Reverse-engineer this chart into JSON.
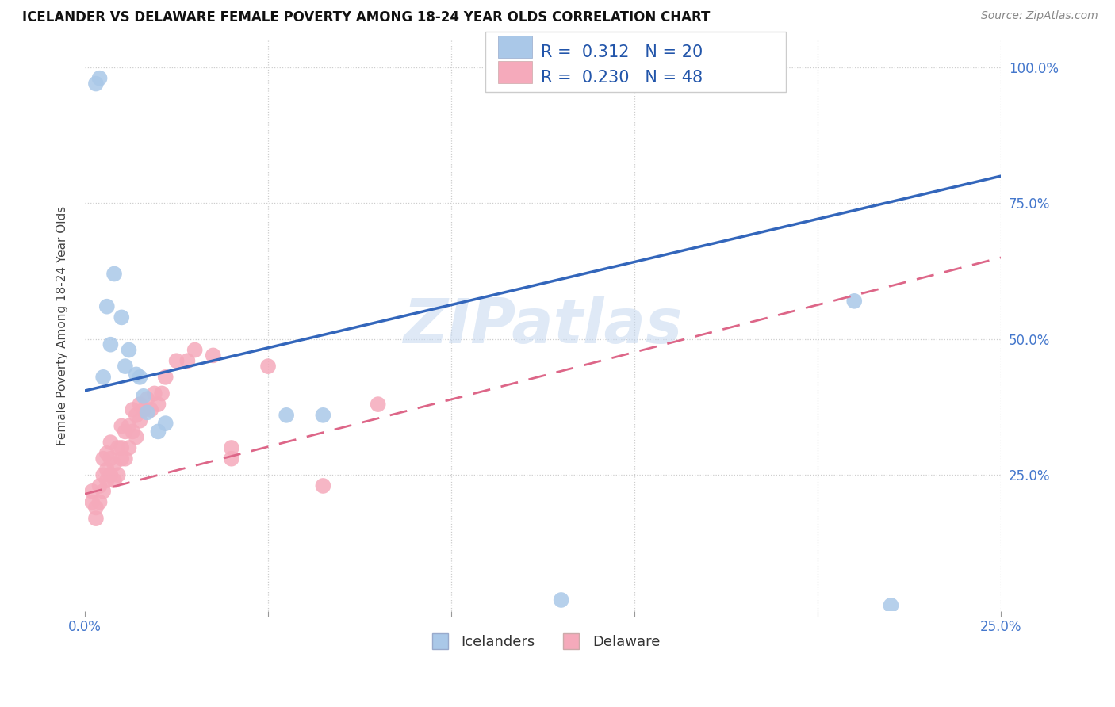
{
  "title": "ICELANDER VS DELAWARE FEMALE POVERTY AMONG 18-24 YEAR OLDS CORRELATION CHART",
  "source": "Source: ZipAtlas.com",
  "ylabel": "Female Poverty Among 18-24 Year Olds",
  "xlim": [
    0.0,
    0.25
  ],
  "ylim": [
    0.0,
    1.05
  ],
  "icelanders_color": "#aac8e8",
  "delaware_color": "#f5aabb",
  "icelanders_R": 0.312,
  "icelanders_N": 20,
  "delaware_R": 0.23,
  "delaware_N": 48,
  "icelanders_line_color": "#3366bb",
  "delaware_line_color": "#dd6688",
  "watermark": "ZIPatlas",
  "icelanders_x": [
    0.003,
    0.004,
    0.005,
    0.006,
    0.007,
    0.008,
    0.01,
    0.011,
    0.012,
    0.014,
    0.015,
    0.016,
    0.017,
    0.02,
    0.022,
    0.055,
    0.065,
    0.13,
    0.21,
    0.22
  ],
  "icelanders_y": [
    0.97,
    0.98,
    0.43,
    0.56,
    0.49,
    0.62,
    0.54,
    0.45,
    0.48,
    0.435,
    0.43,
    0.395,
    0.365,
    0.33,
    0.345,
    0.36,
    0.36,
    0.02,
    0.57,
    0.01
  ],
  "delaware_x": [
    0.002,
    0.002,
    0.003,
    0.003,
    0.004,
    0.004,
    0.005,
    0.005,
    0.005,
    0.006,
    0.006,
    0.006,
    0.007,
    0.007,
    0.007,
    0.008,
    0.008,
    0.009,
    0.009,
    0.01,
    0.01,
    0.01,
    0.011,
    0.011,
    0.012,
    0.012,
    0.013,
    0.013,
    0.014,
    0.014,
    0.015,
    0.015,
    0.016,
    0.017,
    0.018,
    0.019,
    0.02,
    0.021,
    0.022,
    0.025,
    0.028,
    0.03,
    0.035,
    0.04,
    0.04,
    0.05,
    0.065,
    0.08
  ],
  "delaware_y": [
    0.2,
    0.22,
    0.17,
    0.19,
    0.2,
    0.23,
    0.22,
    0.25,
    0.28,
    0.24,
    0.26,
    0.29,
    0.25,
    0.28,
    0.31,
    0.24,
    0.27,
    0.25,
    0.3,
    0.28,
    0.3,
    0.34,
    0.28,
    0.33,
    0.3,
    0.34,
    0.33,
    0.37,
    0.32,
    0.36,
    0.35,
    0.38,
    0.37,
    0.39,
    0.37,
    0.4,
    0.38,
    0.4,
    0.43,
    0.46,
    0.46,
    0.48,
    0.47,
    0.28,
    0.3,
    0.45,
    0.23,
    0.38
  ],
  "ice_line_x0": 0.0,
  "ice_line_y0": 0.405,
  "ice_line_x1": 0.25,
  "ice_line_y1": 0.8,
  "del_line_x0": 0.0,
  "del_line_y0": 0.215,
  "del_line_x1": 0.25,
  "del_line_y1": 0.65
}
